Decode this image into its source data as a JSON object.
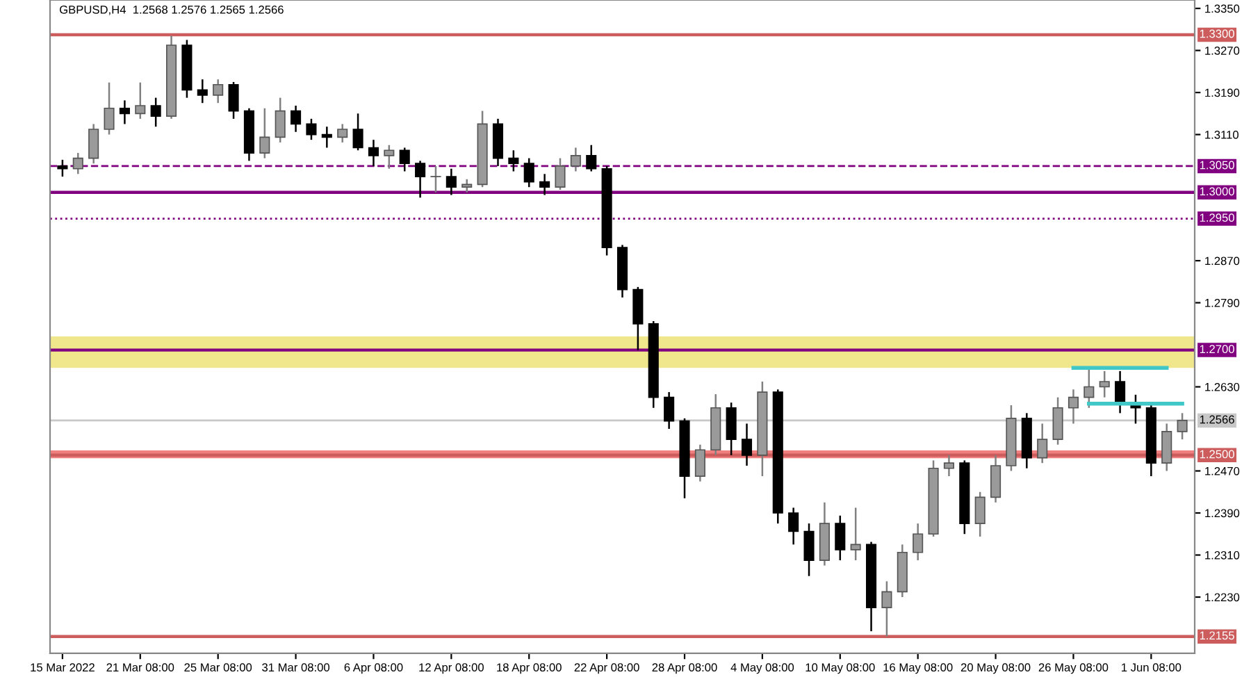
{
  "chart_data": {
    "type": "candlestick",
    "title": "GBPUSD,H4  1.2568 1.2576 1.2565 1.2566",
    "categories": [
      "15 Mar 2022",
      null,
      null,
      null,
      null,
      "21 Mar 08:00",
      null,
      null,
      null,
      null,
      "25 Mar 08:00",
      null,
      null,
      null,
      null,
      "31 Mar 08:00",
      null,
      null,
      null,
      null,
      "6 Apr 08:00",
      null,
      null,
      null,
      null,
      "12 Apr 08:00",
      null,
      null,
      null,
      null,
      "18 Apr 08:00",
      null,
      null,
      null,
      null,
      "22 Apr 08:00",
      null,
      null,
      null,
      null,
      "28 Apr 08:00",
      null,
      null,
      null,
      null,
      "4 May 08:00",
      null,
      null,
      null,
      null,
      "10 May 08:00",
      null,
      null,
      null,
      null,
      "16 May 08:00",
      null,
      null,
      null,
      null,
      "20 May 08:00",
      null,
      null,
      null,
      null,
      "26 May 08:00",
      null,
      null,
      null,
      null,
      "1 Jun 08:00",
      null,
      null
    ],
    "ohlc": [
      [
        1.305,
        1.3062,
        1.303,
        1.3045
      ],
      [
        1.3045,
        1.3075,
        1.3035,
        1.3065
      ],
      [
        1.3065,
        1.313,
        1.3055,
        1.312
      ],
      [
        1.312,
        1.3209,
        1.311,
        1.316
      ],
      [
        1.316,
        1.3175,
        1.313,
        1.315
      ],
      [
        1.315,
        1.3209,
        1.314,
        1.3165
      ],
      [
        1.3165,
        1.318,
        1.3125,
        1.3145
      ],
      [
        1.3145,
        1.3298,
        1.314,
        1.328
      ],
      [
        1.328,
        1.329,
        1.318,
        1.3195
      ],
      [
        1.3195,
        1.3215,
        1.317,
        1.3185
      ],
      [
        1.3185,
        1.3215,
        1.317,
        1.3205
      ],
      [
        1.3205,
        1.321,
        1.314,
        1.3155
      ],
      [
        1.3155,
        1.316,
        1.306,
        1.3075
      ],
      [
        1.3075,
        1.316,
        1.3065,
        1.3105
      ],
      [
        1.3105,
        1.318,
        1.3095,
        1.3155
      ],
      [
        1.3155,
        1.3165,
        1.3115,
        1.313
      ],
      [
        1.313,
        1.314,
        1.31,
        1.311
      ],
      [
        1.311,
        1.3125,
        1.3085,
        1.3105
      ],
      [
        1.3105,
        1.313,
        1.3095,
        1.312
      ],
      [
        1.312,
        1.315,
        1.308,
        1.3085
      ],
      [
        1.3085,
        1.31,
        1.305,
        1.307
      ],
      [
        1.307,
        1.309,
        1.3045,
        1.308
      ],
      [
        1.308,
        1.3085,
        1.304,
        1.3055
      ],
      [
        1.3055,
        1.306,
        1.299,
        1.303
      ],
      [
        1.303,
        1.305,
        1.3,
        1.303
      ],
      [
        1.303,
        1.3045,
        1.2995,
        1.301
      ],
      [
        1.301,
        1.3025,
        1.3,
        1.3015
      ],
      [
        1.3015,
        1.3155,
        1.301,
        1.313
      ],
      [
        1.313,
        1.314,
        1.305,
        1.3065
      ],
      [
        1.3065,
        1.308,
        1.304,
        1.3055
      ],
      [
        1.3055,
        1.3065,
        1.301,
        1.302
      ],
      [
        1.302,
        1.3035,
        1.2995,
        1.301
      ],
      [
        1.301,
        1.3065,
        1.3005,
        1.305
      ],
      [
        1.305,
        1.3085,
        1.304,
        1.307
      ],
      [
        1.307,
        1.309,
        1.304,
        1.3045
      ],
      [
        1.3045,
        1.305,
        1.288,
        1.2895
      ],
      [
        1.2895,
        1.29,
        1.28,
        1.2815
      ],
      [
        1.2815,
        1.282,
        1.27,
        1.275
      ],
      [
        1.275,
        1.2755,
        1.259,
        1.261
      ],
      [
        1.261,
        1.262,
        1.255,
        1.2565
      ],
      [
        1.2565,
        1.257,
        1.2418,
        1.246
      ],
      [
        1.246,
        1.252,
        1.245,
        1.251
      ],
      [
        1.251,
        1.2616,
        1.25,
        1.259
      ],
      [
        1.259,
        1.26,
        1.25,
        1.253
      ],
      [
        1.253,
        1.256,
        1.248,
        1.25
      ],
      [
        1.25,
        1.264,
        1.246,
        1.262
      ],
      [
        1.262,
        1.2625,
        1.237,
        1.239
      ],
      [
        1.239,
        1.24,
        1.233,
        1.2355
      ],
      [
        1.2355,
        1.237,
        1.227,
        1.23
      ],
      [
        1.23,
        1.241,
        1.229,
        1.237
      ],
      [
        1.237,
        1.2385,
        1.23,
        1.232
      ],
      [
        1.232,
        1.24,
        1.23,
        1.233
      ],
      [
        1.233,
        1.2335,
        1.2165,
        1.221
      ],
      [
        1.221,
        1.226,
        1.2155,
        1.224
      ],
      [
        1.224,
        1.233,
        1.223,
        1.2315
      ],
      [
        1.2315,
        1.237,
        1.23,
        1.235
      ],
      [
        1.235,
        1.249,
        1.2345,
        1.2475
      ],
      [
        1.2475,
        1.25,
        1.246,
        1.2485
      ],
      [
        1.2485,
        1.249,
        1.235,
        1.237
      ],
      [
        1.237,
        1.243,
        1.2345,
        1.242
      ],
      [
        1.242,
        1.25,
        1.241,
        1.248
      ],
      [
        1.248,
        1.2595,
        1.247,
        1.257
      ],
      [
        1.257,
        1.258,
        1.2475,
        1.2495
      ],
      [
        1.2495,
        1.256,
        1.2485,
        1.253
      ],
      [
        1.253,
        1.261,
        1.252,
        1.259
      ],
      [
        1.259,
        1.2625,
        1.256,
        1.261
      ],
      [
        1.261,
        1.2666,
        1.259,
        1.263
      ],
      [
        1.263,
        1.266,
        1.261,
        1.264
      ],
      [
        1.264,
        1.266,
        1.258,
        1.26
      ],
      [
        1.26,
        1.2615,
        1.256,
        1.259
      ],
      [
        1.259,
        1.2595,
        1.246,
        1.2485
      ],
      [
        1.2485,
        1.256,
        1.247,
        1.2545
      ],
      [
        1.2545,
        1.258,
        1.253,
        1.2566
      ]
    ],
    "series": [
      {
        "type": "line",
        "color": "#40c8c8",
        "values": [
          null,
          null,
          null,
          null,
          null,
          null,
          null,
          null,
          null,
          null,
          null,
          null,
          null,
          null,
          null,
          null,
          null,
          null,
          null,
          null,
          null,
          null,
          null,
          null,
          null,
          null,
          null,
          null,
          null,
          null,
          null,
          null,
          null,
          null,
          null,
          null,
          null,
          null,
          null,
          null,
          null,
          null,
          null,
          null,
          null,
          null,
          null,
          null,
          null,
          null,
          null,
          null,
          null,
          null,
          null,
          null,
          null,
          null,
          null,
          null,
          null,
          null,
          null,
          null,
          null,
          1.2666,
          1.2666,
          1.2666,
          1.2666,
          1.2666,
          1.2666,
          1.2666,
          null
        ]
      },
      {
        "type": "line",
        "color": "#40c8c8",
        "values": [
          null,
          null,
          null,
          null,
          null,
          null,
          null,
          null,
          null,
          null,
          null,
          null,
          null,
          null,
          null,
          null,
          null,
          null,
          null,
          null,
          null,
          null,
          null,
          null,
          null,
          null,
          null,
          null,
          null,
          null,
          null,
          null,
          null,
          null,
          null,
          null,
          null,
          null,
          null,
          null,
          null,
          null,
          null,
          null,
          null,
          null,
          null,
          null,
          null,
          null,
          null,
          null,
          null,
          null,
          null,
          null,
          null,
          null,
          null,
          null,
          null,
          null,
          null,
          null,
          null,
          null,
          1.2598,
          1.2598,
          1.2598,
          1.2598,
          1.2598,
          1.2598,
          1.2598
        ]
      }
    ],
    "ylim": [
      1.2123,
      1.3366
    ],
    "yticks": [
      {
        "value": 1.335,
        "label": "1.3350"
      },
      {
        "value": 1.327,
        "label": "1.3270"
      },
      {
        "value": 1.319,
        "label": "1.3190"
      },
      {
        "value": 1.311,
        "label": "1.3110"
      },
      {
        "value": 1.287,
        "label": "1.2870"
      },
      {
        "value": 1.279,
        "label": "1.2790"
      },
      {
        "value": 1.263,
        "label": "1.2630"
      },
      {
        "value": 1.247,
        "label": "1.2470"
      },
      {
        "value": 1.239,
        "label": "1.2390"
      },
      {
        "value": 1.231,
        "label": "1.2310"
      },
      {
        "value": 1.223,
        "label": "1.2230"
      }
    ],
    "ref_lines": [
      {
        "axis": "y",
        "value": 1.33,
        "label": "1.3300",
        "color": "#cd5c5c",
        "line_style": "solid"
      },
      {
        "axis": "y",
        "value": 1.305,
        "label": "1.3050",
        "color": "#800080",
        "line_style": "dashed"
      },
      {
        "axis": "y",
        "value": 1.3,
        "label": "1.3000",
        "color": "#800080",
        "line_style": "solid"
      },
      {
        "axis": "y",
        "value": 1.295,
        "label": "1.2950",
        "color": "#800080",
        "line_style": "dotted"
      },
      {
        "axis": "y",
        "value": 1.27,
        "label": "1.2700",
        "color": "#800080",
        "line_style": "solid"
      },
      {
        "axis": "y",
        "value": 1.2566,
        "label": "1.2566",
        "color": "#c8c8c8",
        "line_style": "solid"
      },
      {
        "axis": "y",
        "value": 1.25,
        "label": "1.2500",
        "color": "#cd5c5c",
        "line_style": "solid"
      },
      {
        "axis": "y",
        "value": 1.2155,
        "label": "1.2155",
        "color": "#cd5c5c",
        "line_style": "solid"
      }
    ],
    "bands": [
      {
        "axis": "y",
        "from": 1.2666,
        "to": 1.2726,
        "color": "#f0e68c"
      },
      {
        "axis": "y",
        "from": 1.2494,
        "to": 1.2509,
        "color": "#f08080"
      }
    ],
    "grid": false,
    "legend": false
  }
}
